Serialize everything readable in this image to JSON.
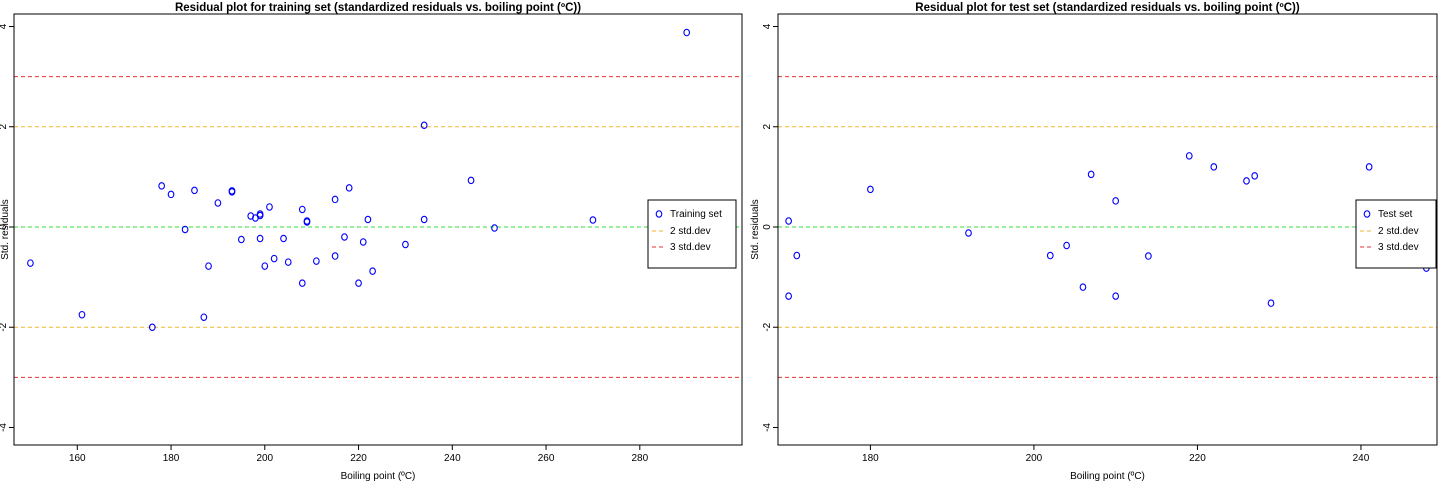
{
  "chart_data": [
    {
      "type": "scatter",
      "title": "Residual plot for training set (standardized residuals vs. boiling point (ºC))",
      "xlabel": "Boiling point (ºC)",
      "ylabel": "Std. residuals",
      "xlim": [
        146.5,
        301.8
      ],
      "ylim": [
        -4.35,
        4.25
      ],
      "xticks": [
        160,
        180,
        200,
        220,
        240,
        260,
        280
      ],
      "yticks": [
        -4,
        -2,
        0,
        2,
        4
      ],
      "grid": false,
      "legend_position": "right",
      "point_color": "#0000ff",
      "reference_lines": [
        {
          "y": 0,
          "color": "#33dd33",
          "style": "dashed"
        },
        {
          "y": 2,
          "color": "#f2b52f",
          "style": "dashed",
          "legend": "2 std.dev"
        },
        {
          "y": -2,
          "color": "#f2b52f",
          "style": "dashed"
        },
        {
          "y": 3,
          "color": "#e53333",
          "style": "dashed",
          "legend": "3 std.dev"
        },
        {
          "y": -3,
          "color": "#e53333",
          "style": "dashed"
        }
      ],
      "series": [
        {
          "name": "Training set",
          "points": [
            [
              150,
              -0.72
            ],
            [
              161,
              -1.75
            ],
            [
              176,
              -2.0
            ],
            [
              178,
              0.82
            ],
            [
              180,
              0.65
            ],
            [
              183,
              -0.05
            ],
            [
              185,
              0.73
            ],
            [
              187,
              -1.8
            ],
            [
              188,
              -0.78
            ],
            [
              190,
              0.48
            ],
            [
              193,
              0.72
            ],
            [
              193,
              0.7
            ],
            [
              195,
              -0.25
            ],
            [
              197,
              0.22
            ],
            [
              198,
              0.18
            ],
            [
              199,
              0.23
            ],
            [
              199,
              0.26
            ],
            [
              199,
              -0.23
            ],
            [
              200,
              -0.78
            ],
            [
              201,
              0.4
            ],
            [
              202,
              -0.63
            ],
            [
              204,
              -0.23
            ],
            [
              205,
              -0.7
            ],
            [
              208,
              -1.12
            ],
            [
              208,
              0.35
            ],
            [
              209,
              0.1
            ],
            [
              209,
              0.12
            ],
            [
              211,
              -0.68
            ],
            [
              215,
              -0.58
            ],
            [
              215,
              0.55
            ],
            [
              217,
              -0.2
            ],
            [
              218,
              0.78
            ],
            [
              220,
              -1.12
            ],
            [
              221,
              -0.3
            ],
            [
              222,
              0.15
            ],
            [
              223,
              -0.88
            ],
            [
              230,
              -0.35
            ],
            [
              234,
              2.03
            ],
            [
              234,
              0.15
            ],
            [
              244,
              0.93
            ],
            [
              249,
              -0.02
            ],
            [
              270,
              0.14
            ],
            [
              290,
              3.88
            ]
          ]
        }
      ]
    },
    {
      "type": "scatter",
      "title": "Residual plot for test set (standardized residuals vs. boiling point (ºC))",
      "xlabel": "Boiling point (ºC)",
      "ylabel": "Std. residuals",
      "xlim": [
        168.7,
        249.3
      ],
      "ylim": [
        -4.35,
        4.25
      ],
      "xticks": [
        180,
        200,
        220,
        240
      ],
      "yticks": [
        -4,
        -2,
        0,
        2,
        4
      ],
      "grid": false,
      "legend_position": "right",
      "point_color": "#0000ff",
      "reference_lines": [
        {
          "y": 0,
          "color": "#33dd33",
          "style": "dashed"
        },
        {
          "y": 2,
          "color": "#f2b52f",
          "style": "dashed",
          "legend": "2 std.dev"
        },
        {
          "y": -2,
          "color": "#f2b52f",
          "style": "dashed"
        },
        {
          "y": 3,
          "color": "#e53333",
          "style": "dashed",
          "legend": "3 std.dev"
        },
        {
          "y": -3,
          "color": "#e53333",
          "style": "dashed"
        }
      ],
      "series": [
        {
          "name": "Test set",
          "points": [
            [
              170,
              0.12
            ],
            [
              170,
              -1.38
            ],
            [
              171,
              -0.57
            ],
            [
              180,
              0.75
            ],
            [
              192,
              -0.12
            ],
            [
              202,
              -0.57
            ],
            [
              204,
              -0.37
            ],
            [
              206,
              -1.2
            ],
            [
              207,
              1.05
            ],
            [
              210,
              0.52
            ],
            [
              210,
              -1.38
            ],
            [
              214,
              -0.58
            ],
            [
              219,
              1.42
            ],
            [
              222,
              1.2
            ],
            [
              226,
              0.92
            ],
            [
              227,
              1.02
            ],
            [
              229,
              -1.52
            ],
            [
              241,
              1.2
            ],
            [
              248,
              -0.82
            ]
          ]
        }
      ]
    }
  ]
}
